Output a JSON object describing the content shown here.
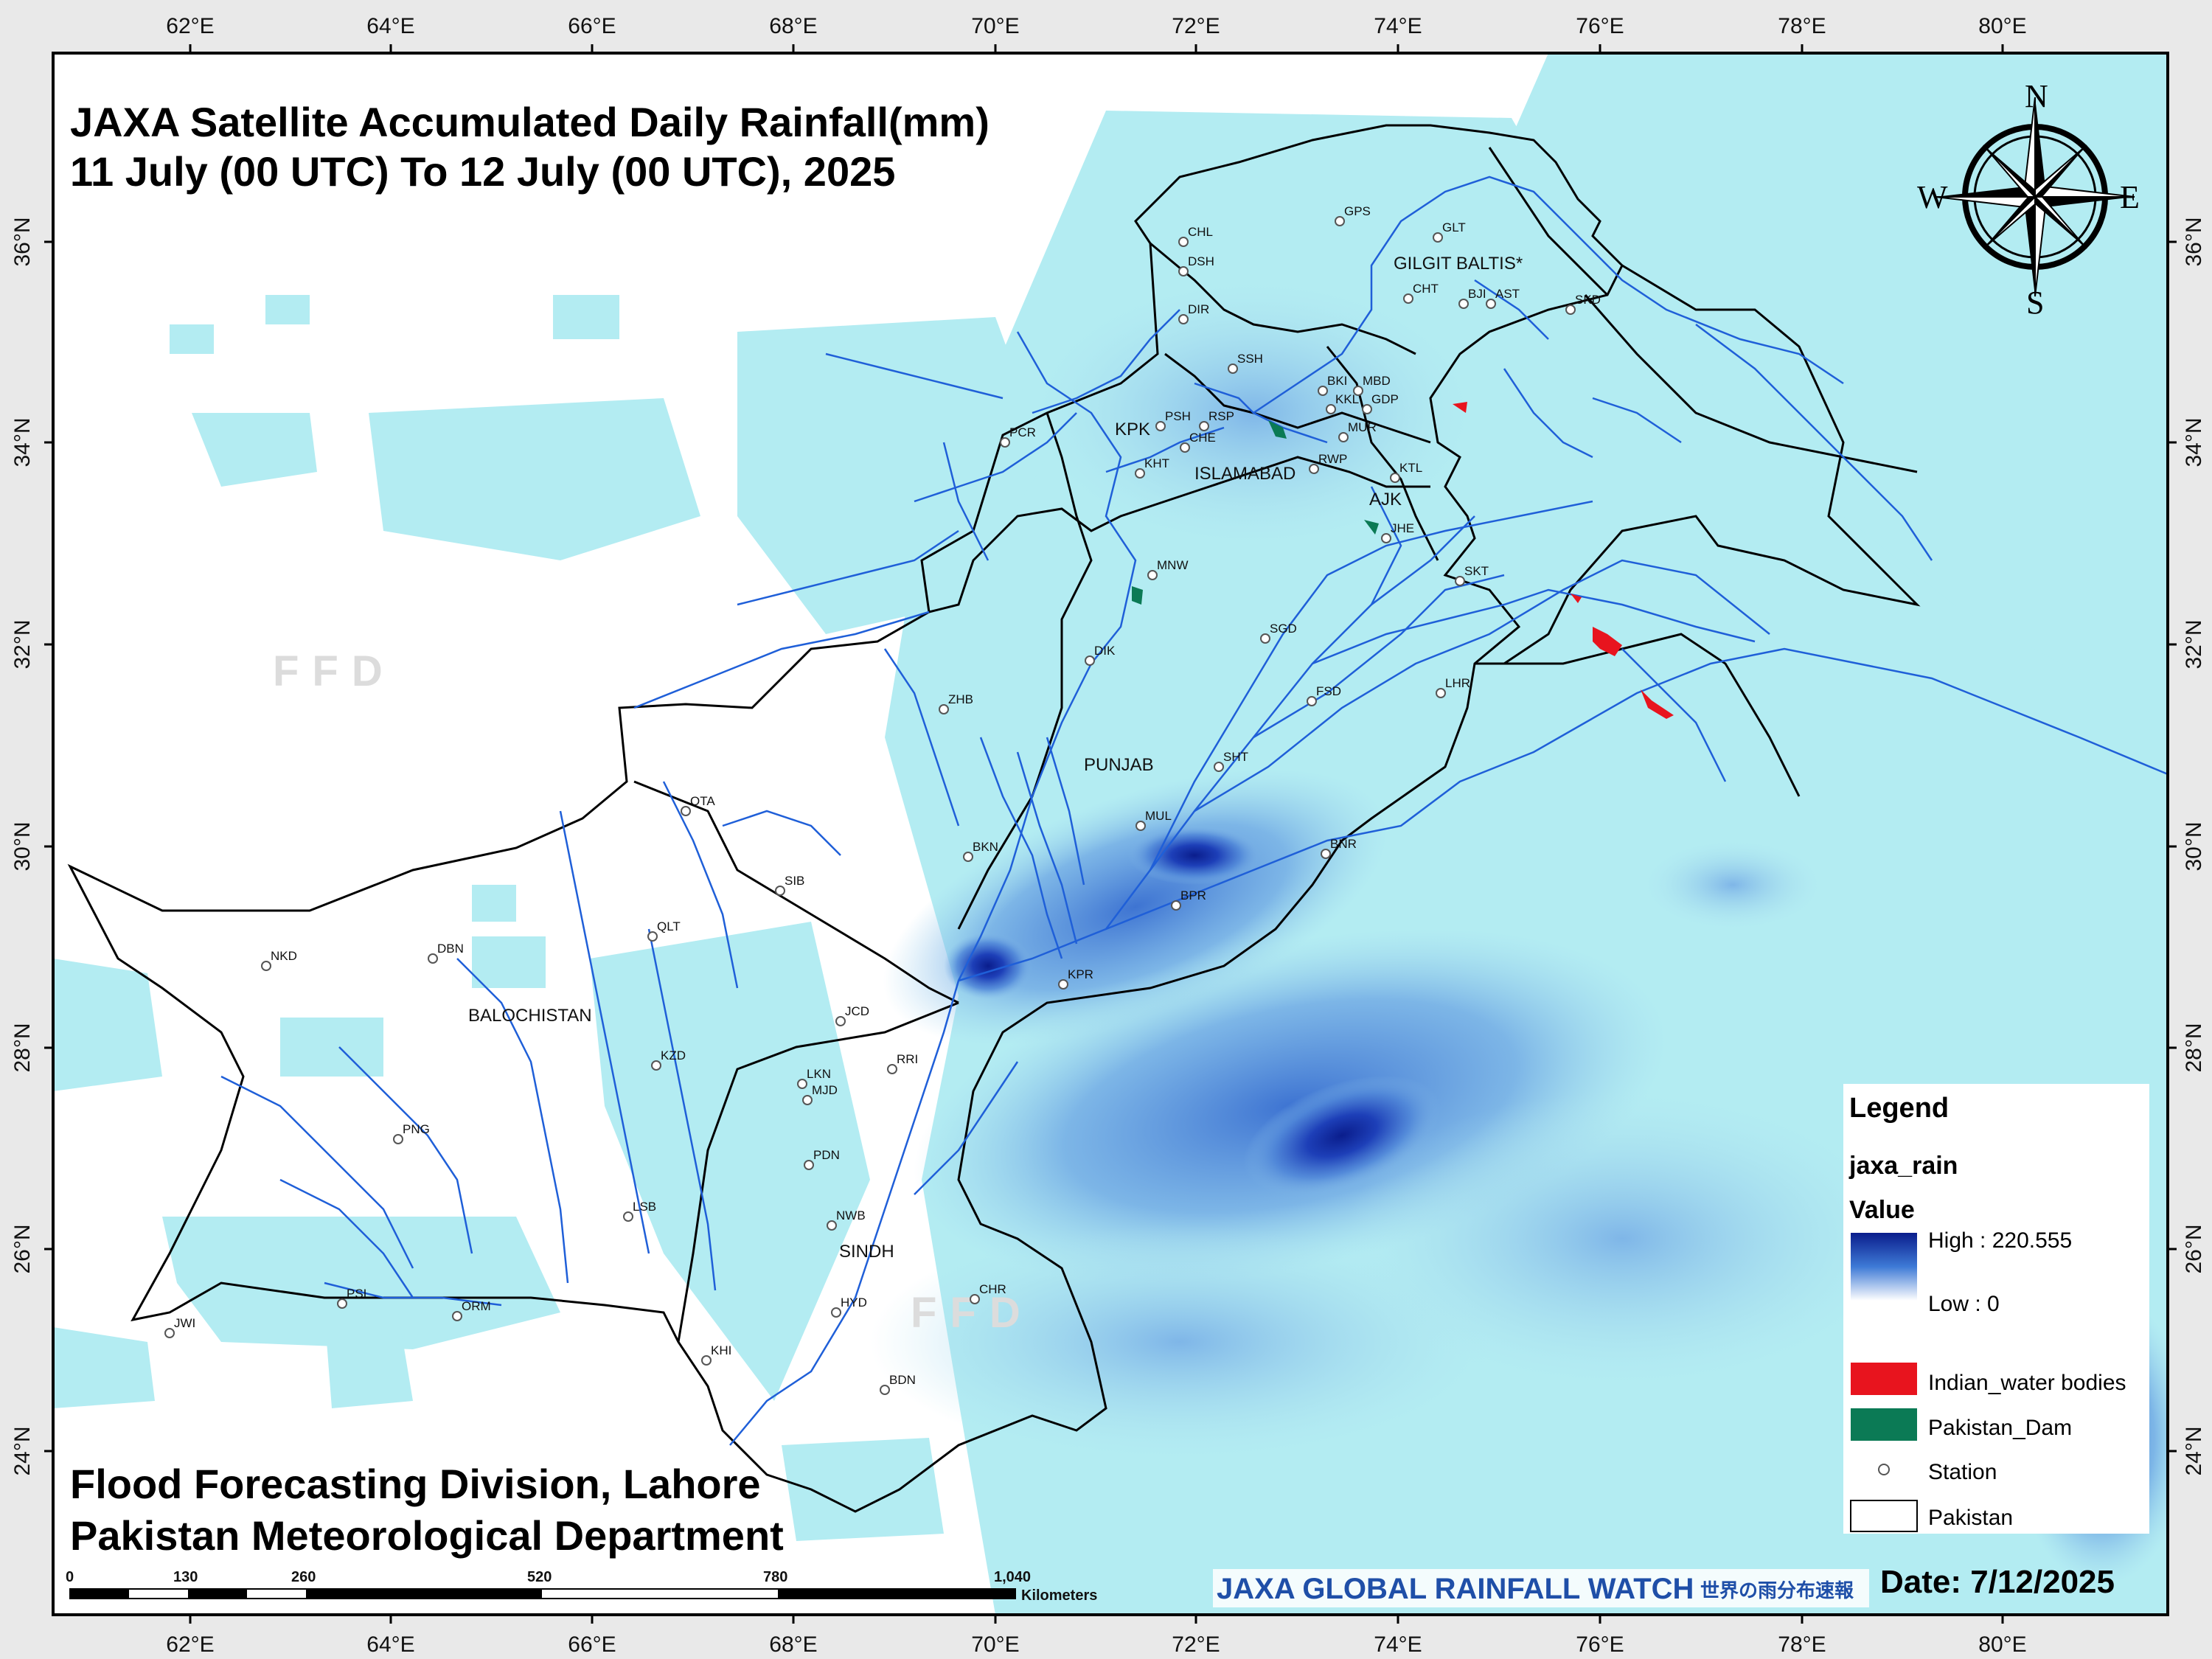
{
  "title": {
    "line1": "JAXA Satellite Accumulated Daily Rainfall(mm)",
    "line2": "11 July (00 UTC) To 12 July (00 UTC), 2025"
  },
  "footer": {
    "line1": "Flood Forecasting Division, Lahore",
    "line2": "Pakistan Meteorological Department"
  },
  "watermark": "FFD",
  "axes": {
    "lon_labels": [
      "62°E",
      "64°E",
      "66°E",
      "68°E",
      "70°E",
      "72°E",
      "74°E",
      "76°E",
      "78°E",
      "80°E"
    ],
    "lat_labels": [
      "36°N",
      "34°N",
      "32°N",
      "30°N",
      "28°N",
      "26°N",
      "24°N"
    ]
  },
  "regions": [
    "GILGIT BALTIS*",
    "KPK",
    "ISLAMABAD",
    "AJK",
    "PUNJAB",
    "BALOCHISTAN",
    "SINDH"
  ],
  "stations": [
    "GPS",
    "GLT",
    "CHT",
    "BJI",
    "AST",
    "SKD",
    "CHL",
    "DSH",
    "DIR",
    "SSH",
    "BKI",
    "MBD",
    "KKL",
    "GDP",
    "PSH",
    "RSP",
    "MUR",
    "CHE",
    "RWP",
    "KHT",
    "PCR",
    "KTL",
    "JHE",
    "SKT",
    "MNW",
    "DIK",
    "SGD",
    "FSD",
    "LHR",
    "ZHB",
    "SHT",
    "QTA",
    "MUL",
    "BKN",
    "BNR",
    "SIB",
    "BPR",
    "QLT",
    "DBN",
    "NKD",
    "KPR",
    "JCD",
    "RRI",
    "LKN",
    "MJD",
    "KZD",
    "PDN",
    "PNG",
    "NWB",
    "LSB",
    "HYD",
    "CHR",
    "PSI",
    "ORM",
    "JWI",
    "KHI",
    "BDN"
  ],
  "compass": {
    "n": "N",
    "e": "E",
    "s": "S",
    "w": "W"
  },
  "legend": {
    "title": "Legend",
    "layer": "jaxa_rain",
    "value_label": "Value",
    "high": "High : 220.555",
    "low": "Low : 0",
    "items": [
      {
        "label": "Indian_water bodies",
        "color": "#e8141e"
      },
      {
        "label": "Pakistan_Dam",
        "color": "#0b7a55"
      },
      {
        "label": "Station",
        "color": "#ffffff"
      },
      {
        "label": "Pakistan",
        "color": "#ffffff"
      }
    ]
  },
  "scale_bar": {
    "ticks": [
      "0",
      "130",
      "260",
      "520",
      "780",
      "1,040"
    ],
    "unit": "Kilometers"
  },
  "jaxa_banner": "JAXA GLOBAL RAINFALL WATCH",
  "jaxa_banner_jp": "世界の雨分布速報",
  "date": "Date: 7/12/2025",
  "colors": {
    "rain_low": "#aeeaf0",
    "rain_mid": "#5a9ae0",
    "rain_high": "#0a1d8c",
    "river": "#1f5fd8",
    "border": "#000000"
  }
}
